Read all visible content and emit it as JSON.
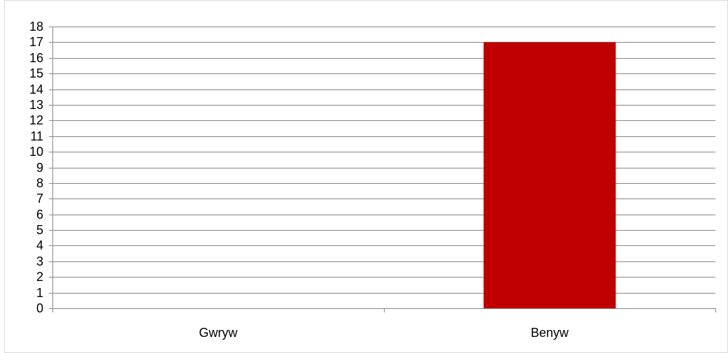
{
  "chart_data": {
    "type": "bar",
    "categories": [
      "Gwryw",
      "Benyw"
    ],
    "series": [
      {
        "values": [
          0,
          17
        ],
        "color": "#C00000"
      }
    ],
    "title": "",
    "xlabel": "",
    "ylabel": "",
    "ylim": [
      0,
      18
    ],
    "yticks": [
      "0",
      "1",
      "2",
      "3",
      "4",
      "5",
      "6",
      "7",
      "8",
      "9",
      "10",
      "11",
      "12",
      "13",
      "14",
      "15",
      "16",
      "17",
      "18"
    ],
    "grid": true,
    "gridlines_color": "#868686",
    "legend": "none"
  }
}
